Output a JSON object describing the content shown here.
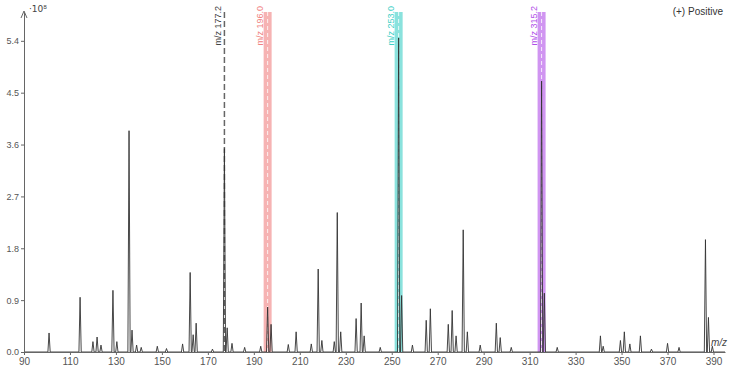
{
  "chart_data": {
    "type": "line",
    "subtitle": "(+) Positive",
    "xlabel": "m/z",
    "ylabel": "·10⁸",
    "color": "#333333",
    "grid": false,
    "xlim": [
      90,
      395
    ],
    "xticks": [
      90,
      110,
      130,
      150,
      170,
      190,
      210,
      230,
      250,
      270,
      290,
      310,
      330,
      350,
      370,
      390
    ],
    "ylim": [
      0,
      5.9
    ],
    "yticks": [
      {
        "value": 0,
        "label": "0.0"
      },
      0.9,
      1.8,
      2.7,
      3.6,
      4.5,
      5.4
    ],
    "x": [
      90,
      100.4,
      100.9,
      101.4,
      113.9,
      114.4,
      114.9,
      119.5,
      120.0,
      120.5,
      121.3,
      121.8,
      122.3,
      123.0,
      123.5,
      124.0,
      128.2,
      128.7,
      129.2,
      129.9,
      130.4,
      130.9,
      135.2,
      135.7,
      136.2,
      136.5,
      137.0,
      137.5,
      138.5,
      139.0,
      139.5,
      140.5,
      141.0,
      141.5,
      147.5,
      148.0,
      148.5,
      151.5,
      152.0,
      152.5,
      158.5,
      159.0,
      159.5,
      161.8,
      162.3,
      162.8,
      163.1,
      163.6,
      164.1,
      164.4,
      164.9,
      165.4,
      171.5,
      172.0,
      172.5,
      176.7,
      177.2,
      177.7,
      177.9,
      178.4,
      178.9,
      180.0,
      180.5,
      181.0,
      185.5,
      186.0,
      186.5,
      192.5,
      193.0,
      193.5,
      195.5,
      196.0,
      196.5,
      197.0,
      197.5,
      198.0,
      204.5,
      205.0,
      205.5,
      207.9,
      208.4,
      208.9,
      214.5,
      215.0,
      215.5,
      217.5,
      218.0,
      218.5,
      219.1,
      219.6,
      220.1,
      224.5,
      225.0,
      225.5,
      225.8,
      226.3,
      226.8,
      227.3,
      227.8,
      228.3,
      234.0,
      234.5,
      235.0,
      236.2,
      236.7,
      237.2,
      237.5,
      238.0,
      238.5,
      244.5,
      245.0,
      245.5,
      252.5,
      253.0,
      253.5,
      253.8,
      254.3,
      254.8,
      258.5,
      259.0,
      259.5,
      264.5,
      265.0,
      265.5,
      266.3,
      266.8,
      267.3,
      274.1,
      274.6,
      275.1,
      275.8,
      276.3,
      276.8,
      277.5,
      278.0,
      278.5,
      280.6,
      281.1,
      281.6,
      282.4,
      282.9,
      283.4,
      288.0,
      288.5,
      289.0,
      295.0,
      295.5,
      296.0,
      296.7,
      297.2,
      297.7,
      301.5,
      302.0,
      302.5,
      314.7,
      315.2,
      315.7,
      315.9,
      316.4,
      316.9,
      321.5,
      322.0,
      322.5,
      340.3,
      340.8,
      341.3,
      341.5,
      342.0,
      342.5,
      349.0,
      349.5,
      350.0,
      350.7,
      351.2,
      351.7,
      353.1,
      353.6,
      354.1,
      357.7,
      358.2,
      358.7,
      362.5,
      363.0,
      363.5,
      369.5,
      370.0,
      370.5,
      374.5,
      375.0,
      375.5,
      386.0,
      386.5,
      387.0,
      387.3,
      387.8,
      388.3,
      389.0,
      389.5,
      390.0,
      395
    ],
    "values": [
      0,
      0,
      0.33,
      0,
      0,
      0.95,
      0,
      0,
      0.18,
      0,
      0,
      0.26,
      0,
      0,
      0.12,
      0,
      0,
      1.07,
      0,
      0,
      0.18,
      0,
      0,
      3.84,
      0,
      0,
      0.38,
      0,
      0,
      0.12,
      0,
      0,
      0.08,
      0,
      0,
      0.1,
      0,
      0,
      0.06,
      0,
      0,
      0.14,
      0,
      0,
      1.38,
      0,
      0,
      0.3,
      0,
      0,
      0.5,
      0,
      0,
      0.05,
      0,
      0,
      3.53,
      0,
      0,
      0.42,
      0,
      0,
      0.15,
      0,
      0,
      0.08,
      0,
      0,
      0.1,
      0,
      0,
      0.78,
      0,
      0,
      0.48,
      0,
      0,
      0.13,
      0,
      0,
      0.35,
      0,
      0,
      0.14,
      0,
      0,
      1.44,
      0,
      0,
      0.2,
      0,
      0,
      0.18,
      0,
      0,
      2.42,
      0,
      0,
      0.35,
      0,
      0,
      0.58,
      0,
      0,
      0.85,
      0,
      0,
      0.28,
      0,
      0,
      0.08,
      0,
      0,
      5.45,
      0,
      0,
      0.98,
      0,
      0,
      0.12,
      0,
      0,
      0.55,
      0,
      0,
      0.75,
      0,
      0,
      0.48,
      0,
      0,
      0.72,
      0,
      0,
      0.28,
      0,
      0,
      2.12,
      0,
      0,
      0.35,
      0,
      0,
      0.12,
      0,
      0,
      0.5,
      0,
      0,
      0.25,
      0,
      0,
      0.08,
      0,
      0,
      4.7,
      0,
      0,
      1.02,
      0,
      0,
      0.08,
      0,
      0,
      0.28,
      0,
      0,
      0.1,
      0,
      0,
      0.2,
      0,
      0,
      0.35,
      0,
      0,
      0.14,
      0,
      0,
      0.28,
      0,
      0,
      0.05,
      0,
      0,
      0.15,
      0,
      0,
      0.08,
      0,
      0,
      1.95,
      0,
      0,
      0.6,
      0,
      0,
      0.1,
      0,
      0
    ],
    "annotations": [
      {
        "x": 177.2,
        "text": "m/z 177.2",
        "color": "#666666",
        "line_style": "dashed"
      },
      {
        "x": 196.0,
        "text": "m/z 196.0",
        "color": "#f08080",
        "line_style": "band"
      },
      {
        "x": 253.0,
        "text": "m/z 253.0",
        "color": "#3ccfc6",
        "line_style": "band"
      },
      {
        "x": 315.2,
        "text": "m/z 315.2",
        "color": "#b04ee8",
        "line_style": "band"
      }
    ]
  }
}
